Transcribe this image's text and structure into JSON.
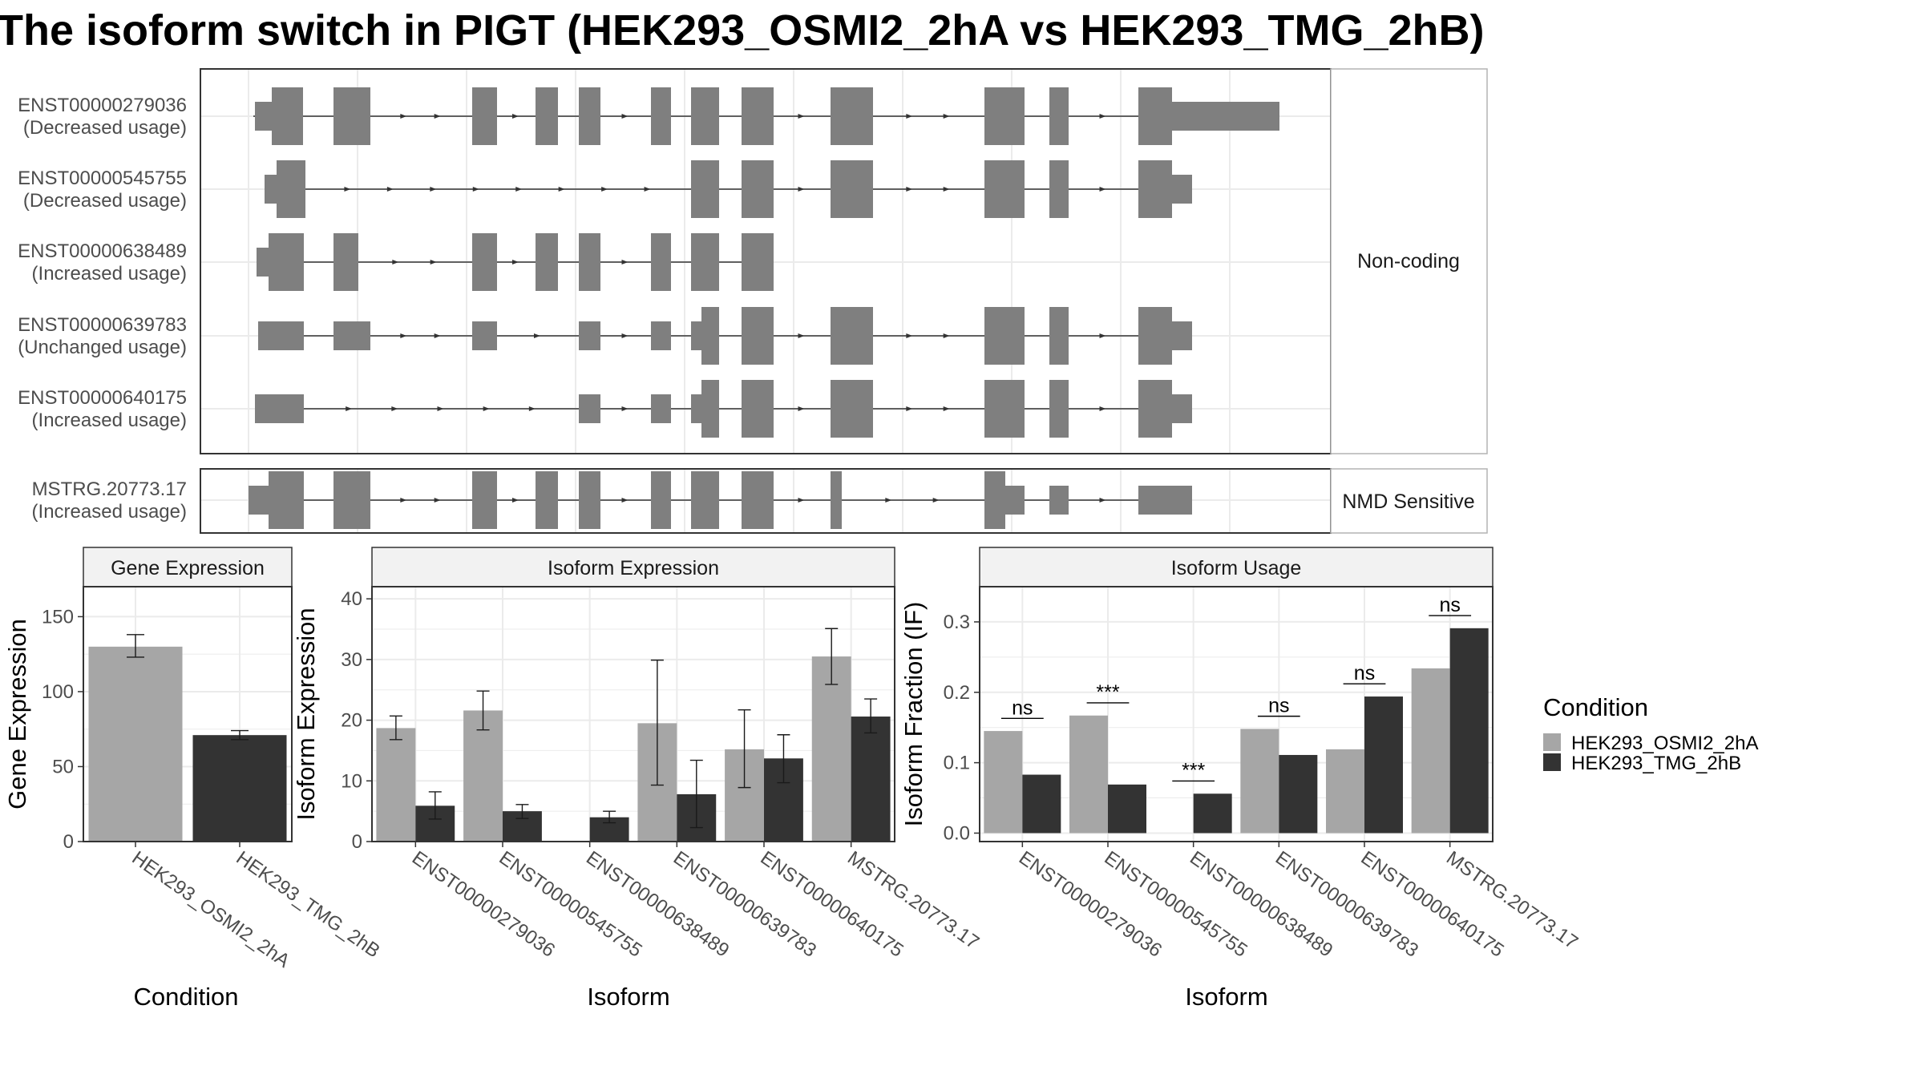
{
  "title": "The isoform switch in PIGT (HEK293_OSMI2_2hA vs HEK293_TMG_2hB)",
  "colors": {
    "osmi": "#a6a6a6",
    "tmg": "#333333",
    "exon": "#7f7f7f",
    "strip": "#f2f2f2",
    "grid": "#ebebeb",
    "panel_border": "#333333"
  },
  "structure": {
    "groups": [
      {
        "label": "Non-coding",
        "isoforms": [
          {
            "id": "ENST00000279036",
            "usage": "(Decreased usage)"
          },
          {
            "id": "ENST00000545755",
            "usage": "(Decreased usage)"
          },
          {
            "id": "ENST00000638489",
            "usage": "(Increased usage)"
          },
          {
            "id": "ENST00000639783",
            "usage": "(Unchanged usage)"
          },
          {
            "id": "ENST00000640175",
            "usage": "(Increased usage)"
          }
        ]
      },
      {
        "label": "NMD Sensitive",
        "isoforms": [
          {
            "id": "MSTRG.20773.17",
            "usage": "(Increased usage)"
          }
        ]
      }
    ]
  },
  "chart_data": [
    {
      "type": "bar",
      "title": "Gene Expression",
      "xlabel": "Condition",
      "ylabel": "Gene Expression",
      "ylim": [
        0,
        170
      ],
      "yticks": [
        0,
        50,
        100,
        150
      ],
      "categories": [
        "HEK293_OSMI2_2hA",
        "HEK293_TMG_2hB"
      ],
      "values": [
        130,
        71
      ],
      "errors": [
        [
          123,
          138
        ],
        [
          68,
          74
        ]
      ]
    },
    {
      "type": "bar",
      "title": "Isoform Expression",
      "xlabel": "Isoform",
      "ylabel": "Isoform Expression",
      "ylim": [
        0,
        42
      ],
      "yticks": [
        0,
        10,
        20,
        30,
        40
      ],
      "categories": [
        "ENST00000279036",
        "ENST00000545755",
        "ENST00000638489",
        "ENST00000639783",
        "ENST00000640175",
        "MSTRG.20773.17"
      ],
      "series": [
        {
          "name": "HEK293_OSMI2_2hA",
          "values": [
            18.7,
            21.6,
            0.0,
            19.5,
            15.2,
            30.5
          ],
          "errors": [
            [
              16.8,
              20.7
            ],
            [
              18.4,
              24.8
            ],
            [
              0,
              0
            ],
            [
              9.3,
              29.9
            ],
            [
              8.9,
              21.7
            ],
            [
              25.9,
              35.1
            ]
          ]
        },
        {
          "name": "HEK293_TMG_2hB",
          "values": [
            5.9,
            5.0,
            4.0,
            7.8,
            13.7,
            20.6
          ],
          "errors": [
            [
              3.7,
              8.2
            ],
            [
              3.8,
              6.1
            ],
            [
              3.1,
              5.0
            ],
            [
              2.3,
              13.4
            ],
            [
              9.7,
              17.6
            ],
            [
              17.9,
              23.5
            ]
          ]
        }
      ]
    },
    {
      "type": "bar",
      "title": "Isoform Usage",
      "xlabel": "Isoform",
      "ylabel": "Isoform Fraction (IF)",
      "ylim": [
        -0.012,
        0.35
      ],
      "yticks": [
        0.0,
        0.1,
        0.2,
        0.3
      ],
      "ytick_labels": [
        "0.0",
        "0.1",
        "0.2",
        "0.3"
      ],
      "categories": [
        "ENST00000279036",
        "ENST00000545755",
        "ENST00000638489",
        "ENST00000639783",
        "ENST00000640175",
        "MSTRG.20773.17"
      ],
      "series": [
        {
          "name": "HEK293_OSMI2_2hA",
          "values": [
            0.145,
            0.167,
            0.0,
            0.148,
            0.119,
            0.234
          ]
        },
        {
          "name": "HEK293_TMG_2hB",
          "values": [
            0.083,
            0.069,
            0.056,
            0.111,
            0.194,
            0.291
          ]
        }
      ],
      "significance": [
        "ns",
        "***",
        "***",
        "ns",
        "ns",
        "ns"
      ],
      "legend": {
        "title": "Condition",
        "position": "right",
        "entries": [
          "HEK293_OSMI2_2hA",
          "HEK293_TMG_2hB"
        ]
      }
    }
  ]
}
